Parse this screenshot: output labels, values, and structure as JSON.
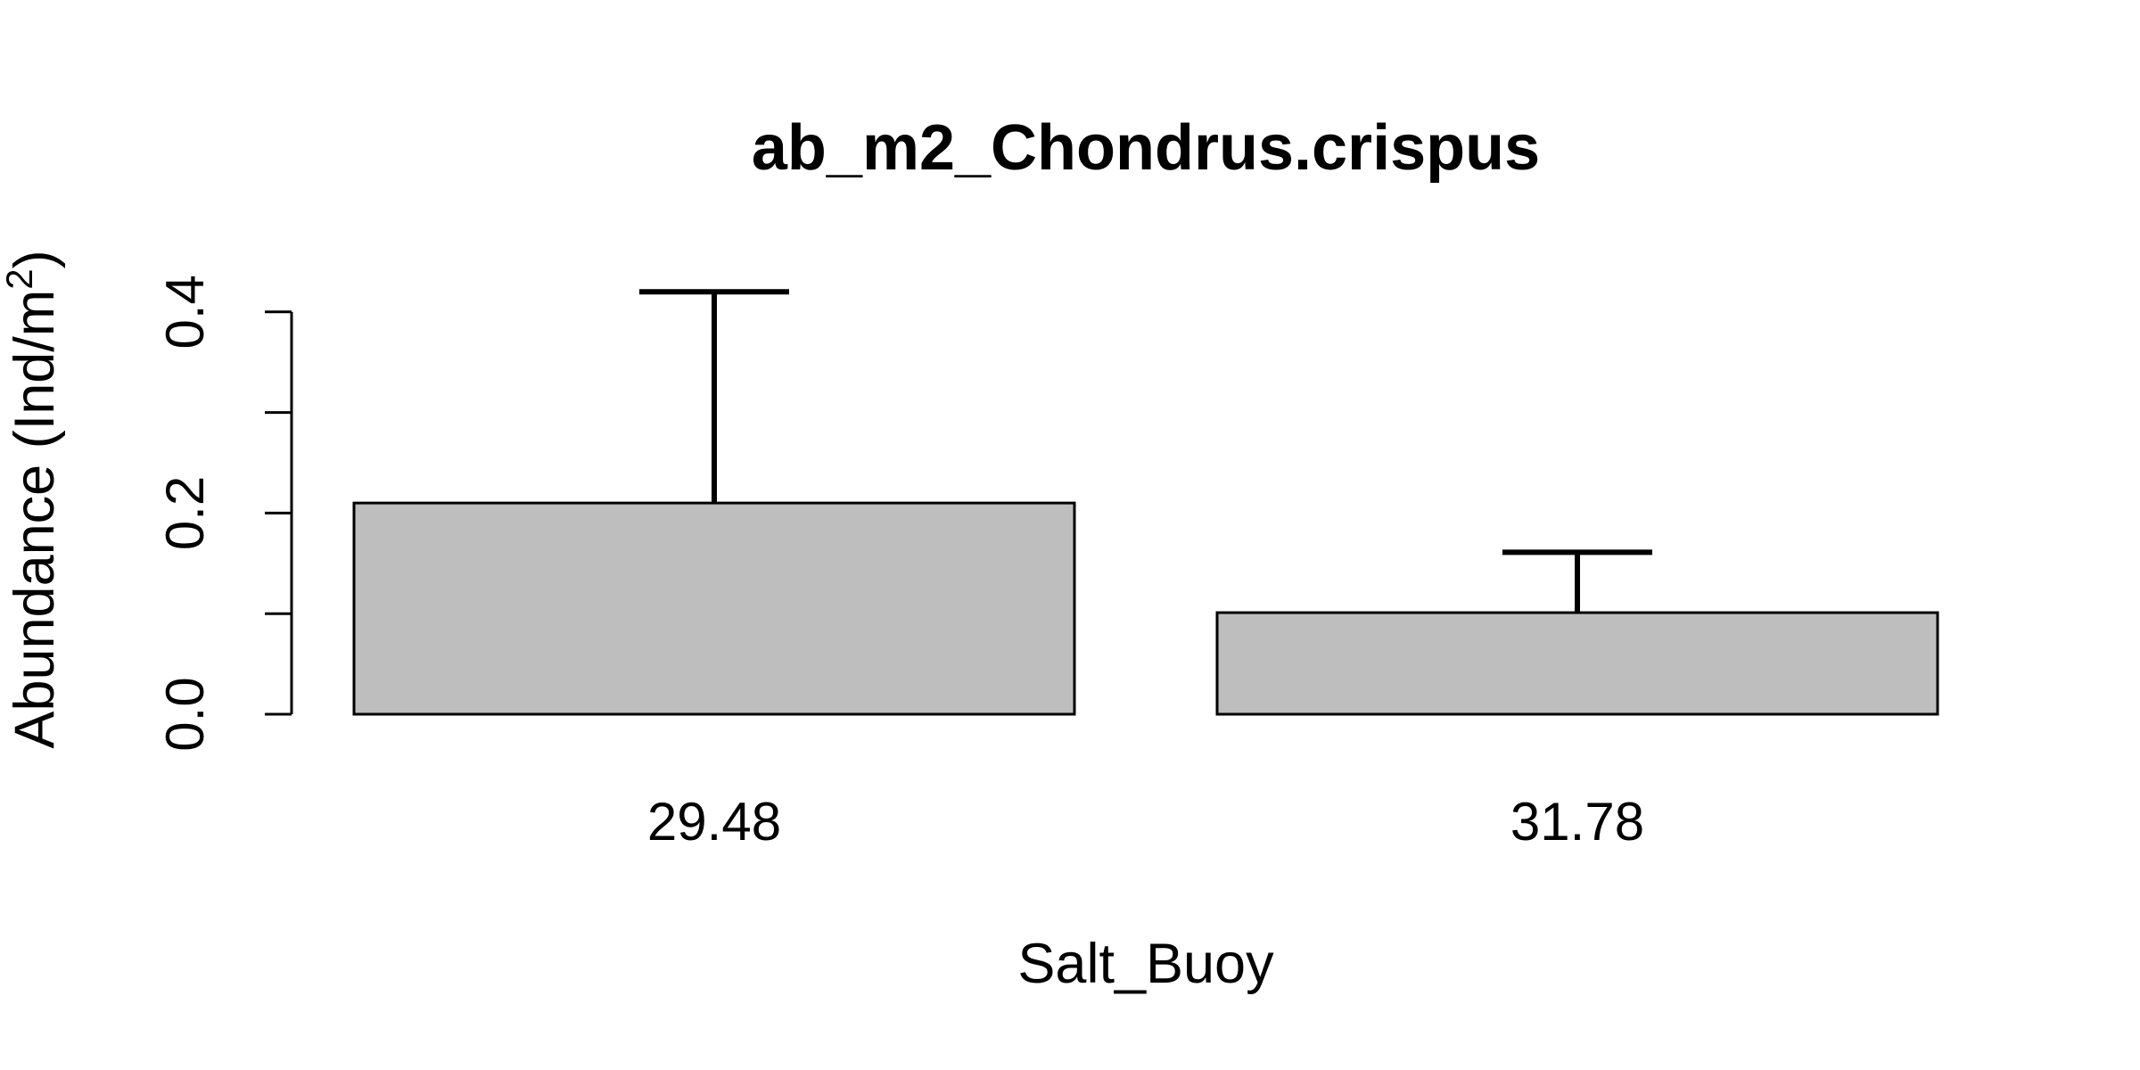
{
  "chart_data": {
    "type": "bar",
    "title": "ab_m2_Chondrus.crispus",
    "xlabel": "Salt_Buoy",
    "ylabel": {
      "text": "Abundance (Ind/m",
      "superscript": "2",
      "close": ")"
    },
    "categories": [
      "29.48",
      "31.78"
    ],
    "values": [
      0.21,
      0.101
    ],
    "error_upper": [
      0.42,
      0.161
    ],
    "ylim": [
      0,
      0.42
    ],
    "yticks": [
      0.0,
      0.1,
      0.2,
      0.3,
      0.4
    ],
    "yticklabels": [
      "0.0",
      "",
      "0.2",
      "",
      "0.4"
    ],
    "bar_color": "#bebebe",
    "edge_color": "#000000",
    "grid": false,
    "legend": "none"
  }
}
